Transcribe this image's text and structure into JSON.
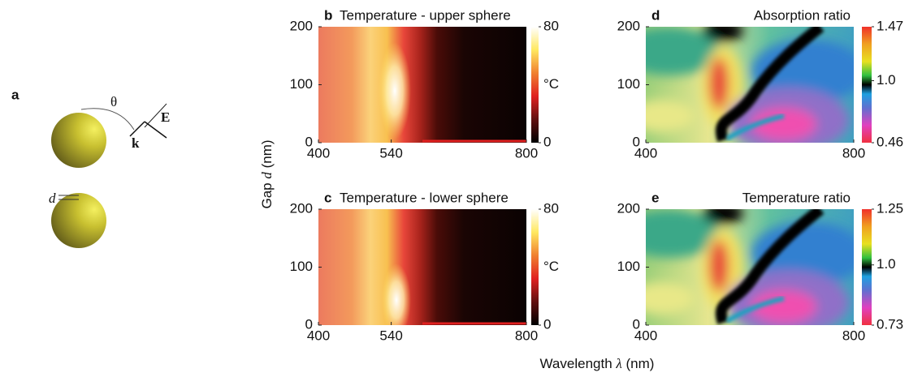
{
  "figure": {
    "panel_label": "a",
    "theta": "θ",
    "field": "E",
    "wavevector": "k",
    "gap": "d"
  },
  "shared_axes": {
    "ylabel": [
      "Gap",
      "d",
      "(nm)"
    ],
    "xlabel": [
      "Wavelength",
      "λ",
      "(nm)"
    ]
  },
  "chart_data": [
    {
      "type": "heatmap",
      "panel_label": "b",
      "title": "Temperature - upper sphere",
      "xlim": [
        400,
        800
      ],
      "ylim": [
        0,
        200
      ],
      "xticks": [
        400,
        540,
        800
      ],
      "yticks": [
        0,
        100,
        200
      ],
      "clim": [
        0,
        80
      ],
      "cticks": [
        0,
        80
      ],
      "colorbar_label": "°C"
    },
    {
      "type": "heatmap",
      "panel_label": "c",
      "title": "Temperature - lower sphere",
      "xlim": [
        400,
        800
      ],
      "ylim": [
        0,
        200
      ],
      "xticks": [
        400,
        540,
        800
      ],
      "yticks": [
        0,
        100,
        200
      ],
      "clim": [
        0,
        80
      ],
      "cticks": [
        0,
        80
      ],
      "colorbar_label": "°C"
    },
    {
      "type": "heatmap",
      "panel_label": "d",
      "title": "Absorption ratio",
      "xlim": [
        400,
        800
      ],
      "ylim": [
        0,
        200
      ],
      "xticks": [
        400,
        800
      ],
      "yticks": [
        0,
        100,
        200
      ],
      "clim": [
        0.46,
        1.47
      ],
      "cticks": [
        0.46,
        {
          "value": 1,
          "label": "1.0"
        },
        1.47
      ]
    },
    {
      "type": "heatmap",
      "panel_label": "e",
      "title": "Temperature ratio",
      "xlim": [
        400,
        800
      ],
      "ylim": [
        0,
        200
      ],
      "xticks": [
        400,
        800
      ],
      "yticks": [
        0,
        100,
        200
      ],
      "clim": [
        0.73,
        1.25
      ],
      "cticks": [
        0.73,
        {
          "value": 1,
          "label": "1.0"
        },
        1.25
      ]
    }
  ]
}
